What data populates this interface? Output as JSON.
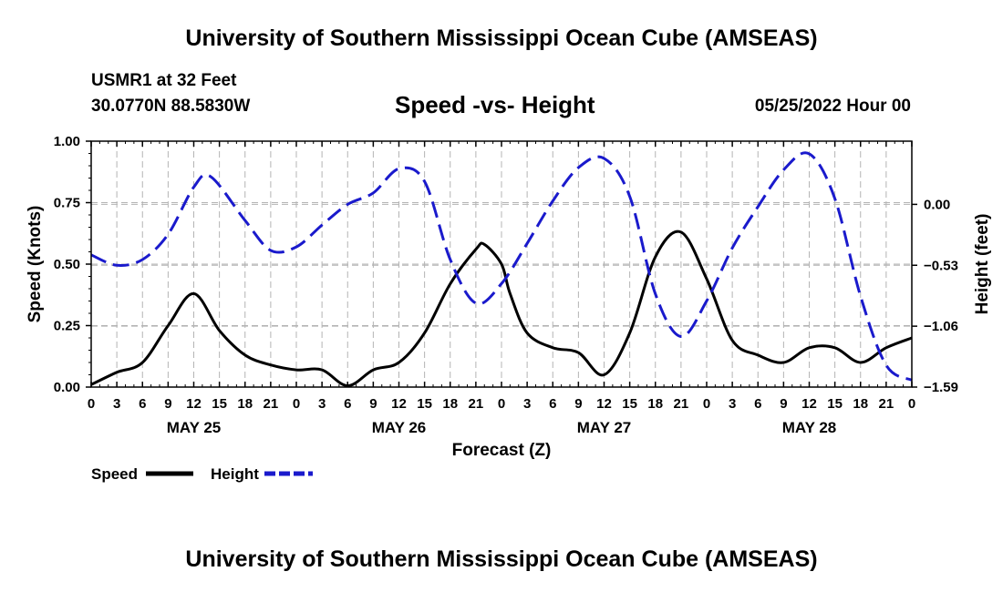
{
  "header": {
    "top_title": "University of Southern Mississippi Ocean Cube (AMSEAS)",
    "station": "USMR1 at 32 Feet",
    "location": "30.0770N  88.5830W",
    "chart_title": "Speed -vs- Height",
    "run": "05/25/2022 Hour 00",
    "bottom_title": "University of Southern Mississippi Ocean Cube (AMSEAS)"
  },
  "legend": {
    "speed_label": "Speed",
    "height_label": "Height",
    "speed_color": "#000000",
    "height_color": "#1a1acc"
  },
  "chart_data": {
    "type": "line",
    "title": "Speed -vs- Height",
    "xlabel": "Forecast (Z)",
    "ylabel": "Speed (Knots)",
    "y2label": "Height (feet)",
    "x_range": [
      0,
      96
    ],
    "ylim": [
      0,
      1
    ],
    "y2lim": [
      -1.59,
      0.55
    ],
    "y_ticks": [
      "0.00",
      "0.25",
      "0.50",
      "0.75",
      "1.00"
    ],
    "y2_ticks": [
      {
        "value": -1.59,
        "label": "−1.59"
      },
      {
        "value": -1.06,
        "label": "−1.06"
      },
      {
        "value": -0.53,
        "label": "−0.53"
      },
      {
        "value": 0.0,
        "label": "0.00"
      }
    ],
    "x_tick_labels": [
      "0",
      "3",
      "6",
      "9",
      "12",
      "15",
      "18",
      "21",
      "0",
      "3",
      "6",
      "9",
      "12",
      "15",
      "18",
      "21",
      "0",
      "3",
      "6",
      "9",
      "12",
      "15",
      "18",
      "21",
      "0",
      "3",
      "6",
      "9",
      "12",
      "15",
      "18",
      "21",
      "0"
    ],
    "day_labels": [
      {
        "hour": 12,
        "label": "MAY 25"
      },
      {
        "hour": 36,
        "label": "MAY 26"
      },
      {
        "hour": 60,
        "label": "MAY 27"
      },
      {
        "hour": 84,
        "label": "MAY 28"
      }
    ],
    "grid": true,
    "series": [
      {
        "name": "Speed",
        "axis": "left",
        "style": "solid",
        "color": "#000000",
        "x": [
          0,
          3,
          6,
          9,
          12,
          15,
          18,
          21,
          24,
          27,
          30,
          33,
          36,
          39,
          42,
          45,
          46,
          48,
          49,
          51,
          54,
          57,
          60,
          63,
          66,
          69,
          72,
          75,
          78,
          81,
          84,
          87,
          90,
          93,
          96
        ],
        "values": [
          0.01,
          0.06,
          0.1,
          0.25,
          0.38,
          0.23,
          0.13,
          0.09,
          0.07,
          0.07,
          0.005,
          0.07,
          0.1,
          0.22,
          0.42,
          0.56,
          0.58,
          0.5,
          0.38,
          0.22,
          0.16,
          0.14,
          0.05,
          0.22,
          0.53,
          0.63,
          0.44,
          0.19,
          0.13,
          0.1,
          0.16,
          0.16,
          0.1,
          0.16,
          0.2
        ]
      },
      {
        "name": "Height",
        "axis": "right",
        "style": "dashed",
        "color": "#1a1acc",
        "x": [
          0,
          3,
          6,
          9,
          12,
          14,
          18,
          21,
          24,
          27,
          30,
          33,
          36,
          39,
          42,
          45,
          48,
          51,
          54,
          57,
          60,
          63,
          66,
          69,
          72,
          75,
          78,
          81,
          84,
          87,
          90,
          93,
          96
        ],
        "values": [
          -0.44,
          -0.53,
          -0.48,
          -0.26,
          0.15,
          0.24,
          -0.14,
          -0.4,
          -0.37,
          -0.18,
          0.0,
          0.1,
          0.31,
          0.2,
          -0.48,
          -0.86,
          -0.69,
          -0.34,
          0.03,
          0.32,
          0.4,
          0.07,
          -0.78,
          -1.15,
          -0.84,
          -0.38,
          -0.02,
          0.3,
          0.44,
          0.05,
          -0.8,
          -1.4,
          -1.53
        ]
      }
    ]
  }
}
